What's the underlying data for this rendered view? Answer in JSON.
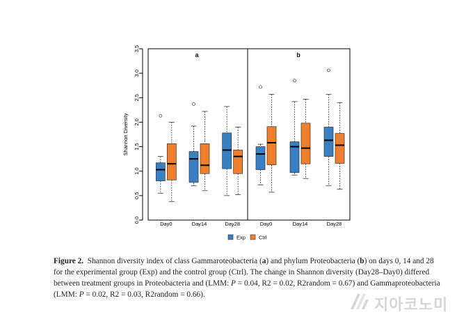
{
  "chart_data": {
    "type": "boxplot",
    "ylabel": "Shannon Diversity",
    "ylim": [
      0,
      3.5
    ],
    "yticks": [
      "0.0",
      "0.5",
      "1.0",
      "1.5",
      "2.0",
      "2.5",
      "3.0",
      "3.5"
    ],
    "categories": [
      "Day0",
      "Day14",
      "Day28"
    ],
    "legend": [
      {
        "name": "Exp",
        "color": "#3a7fc1"
      },
      {
        "name": "Ctrl",
        "color": "#ef7f2e"
      }
    ],
    "panels": [
      {
        "label": "a",
        "series": [
          {
            "name": "Exp",
            "boxes": [
              {
                "min": 0.55,
                "q1": 0.8,
                "median": 1.03,
                "q3": 1.17,
                "max": 1.3,
                "outliers": [
                  2.13
                ]
              },
              {
                "min": 0.7,
                "q1": 0.77,
                "median": 1.25,
                "q3": 1.4,
                "max": 1.92,
                "outliers": [
                  2.37
                ]
              },
              {
                "min": 0.5,
                "q1": 1.05,
                "median": 1.43,
                "q3": 1.78,
                "max": 2.32,
                "outliers": []
              }
            ]
          },
          {
            "name": "Ctrl",
            "boxes": [
              {
                "min": 0.38,
                "q1": 0.82,
                "median": 1.15,
                "q3": 1.56,
                "max": 2.0,
                "outliers": []
              },
              {
                "min": 0.6,
                "q1": 0.95,
                "median": 1.12,
                "q3": 1.56,
                "max": 2.22,
                "outliers": []
              },
              {
                "min": 0.52,
                "q1": 0.95,
                "median": 1.3,
                "q3": 1.43,
                "max": 1.9,
                "outliers": []
              }
            ]
          }
        ]
      },
      {
        "label": "b",
        "series": [
          {
            "name": "Exp",
            "boxes": [
              {
                "min": 0.72,
                "q1": 1.03,
                "median": 1.35,
                "q3": 1.5,
                "max": 1.55,
                "outliers": [
                  2.72
                ]
              },
              {
                "min": 0.92,
                "q1": 0.97,
                "median": 1.5,
                "q3": 1.6,
                "max": 2.42,
                "outliers": [
                  2.85
                ]
              },
              {
                "min": 0.7,
                "q1": 1.3,
                "median": 1.63,
                "q3": 1.9,
                "max": 2.57,
                "outliers": [
                  3.06
                ]
              }
            ]
          },
          {
            "name": "Ctrl",
            "boxes": [
              {
                "min": 0.57,
                "q1": 1.13,
                "median": 1.58,
                "q3": 1.91,
                "max": 2.57,
                "outliers": []
              },
              {
                "min": 0.85,
                "q1": 1.15,
                "median": 1.47,
                "q3": 1.98,
                "max": 2.47,
                "outliers": []
              },
              {
                "min": 0.63,
                "q1": 1.16,
                "median": 1.53,
                "q3": 1.77,
                "max": 2.4,
                "outliers": []
              }
            ]
          }
        ]
      }
    ]
  },
  "caption": {
    "label": "Figure 2.",
    "text_before_a": "Shannon diversity index of class Gammaroteobacteria (",
    "a": "a",
    "text_between": ") and phylum Proteobacteria (",
    "b": "b",
    "text_after": ") on days 0, 14 and 28 for the experimental group (Exp) and the control group (Ctrl). The change in Shannon diversity (Day28–Day0) differed between treatment groups in Proteobacteria and (LMM: ",
    "p1": "P",
    "stats1": " = 0.04, R2 = 0.02, R2random = 0.67) and Gammaproteobacteria (LMM: ",
    "p2": "P",
    "stats2": " = 0.02, R2 = 0.03, R2random = 0.66)."
  },
  "watermark": {
    "text": "지아코노미"
  }
}
